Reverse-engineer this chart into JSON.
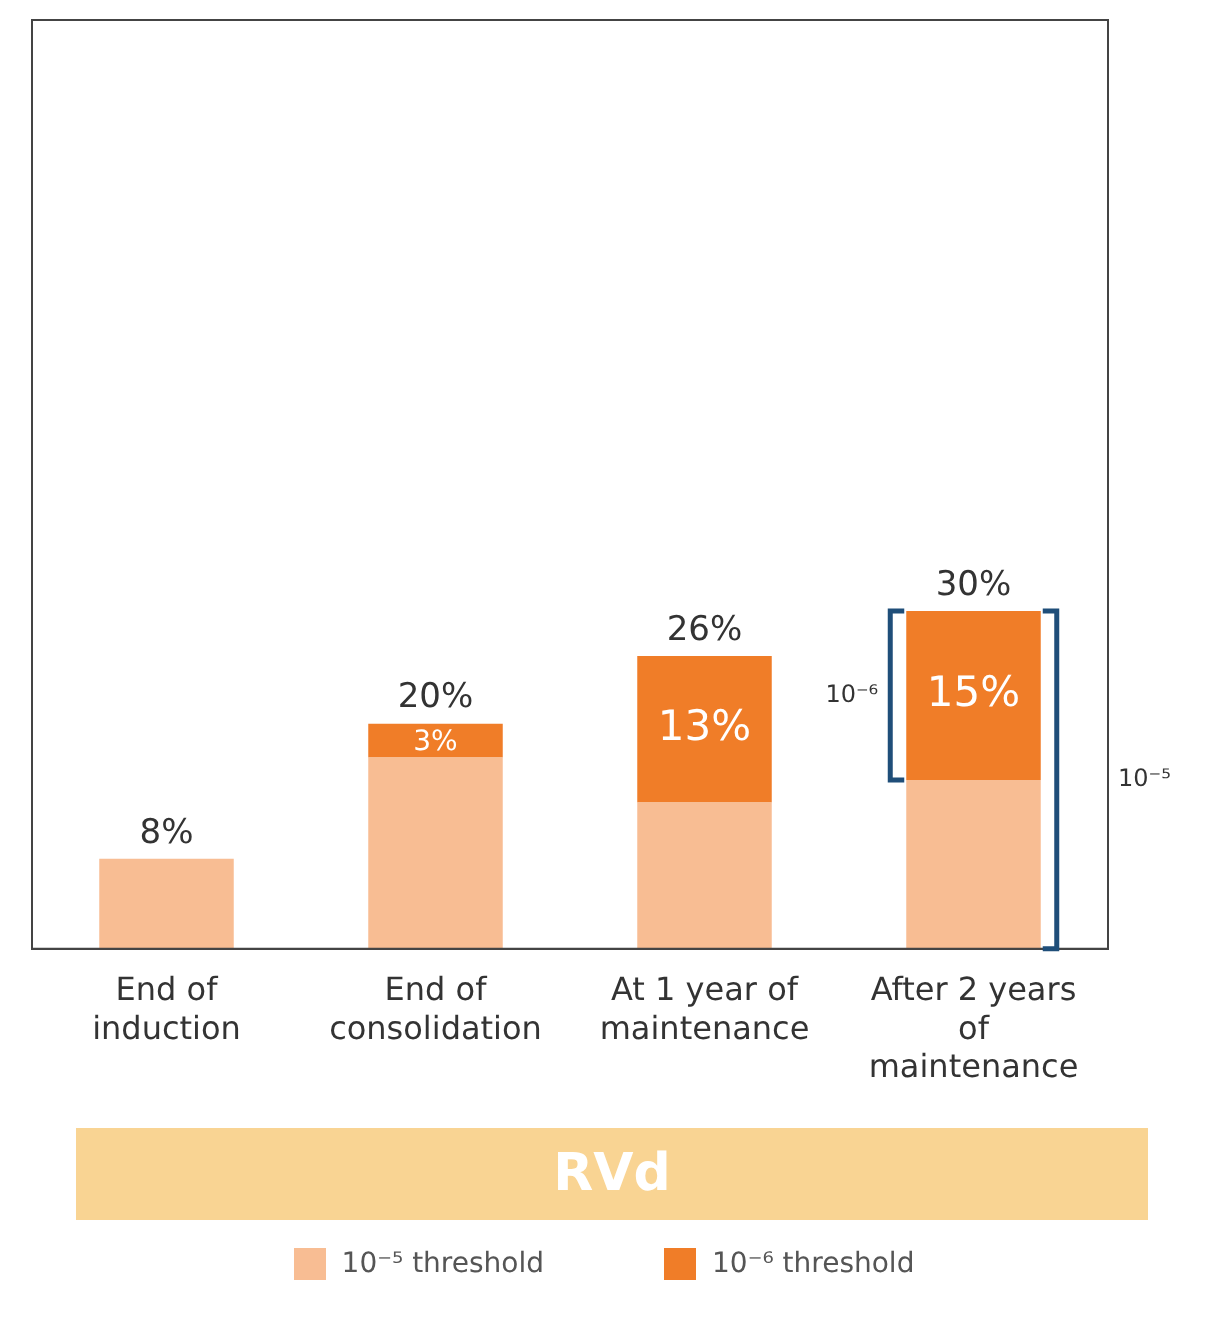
{
  "chart_data": {
    "type": "bar",
    "stacked": true,
    "categories": [
      "End of induction",
      "End of consolidation",
      "At 1 year of maintenance",
      "After 2 years of maintenance"
    ],
    "series": [
      {
        "name": "10⁻⁵ threshold",
        "color": "#f8bd93",
        "values": [
          8,
          17,
          13,
          15
        ]
      },
      {
        "name": "10⁻⁶ threshold",
        "color": "#f07d28",
        "values": [
          null,
          3,
          13,
          15
        ],
        "value_labels": [
          null,
          "3%",
          "13%",
          "15%"
        ]
      }
    ],
    "totals": [
      "8%",
      "20%",
      "26%",
      "30%"
    ],
    "annotations": [
      "RVd",
      "10⁻⁶",
      "10⁻⁵"
    ],
    "tick_labels": "x",
    "grid": false,
    "legend": "bottom"
  }
}
